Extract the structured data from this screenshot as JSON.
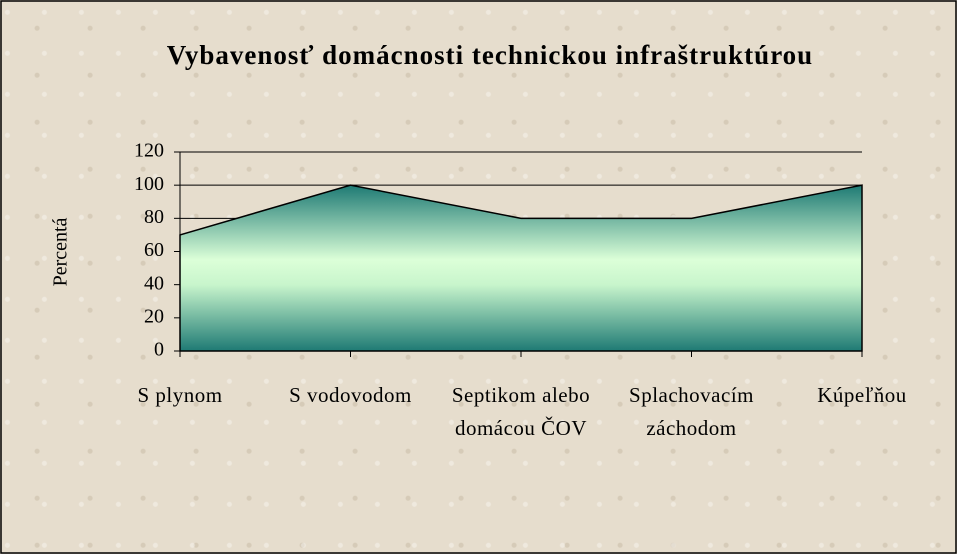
{
  "chart_data": {
    "type": "area",
    "title": "Vybavenosť domácnosti technickou infraštruktúrou",
    "ylabel": "Percentá",
    "categories": [
      "S plynom",
      "S vodovodom",
      "Septikom alebo domácou ČOV",
      "Splachovacím záchodom",
      "Kúpeľňou"
    ],
    "values": [
      70,
      100,
      80,
      80,
      100
    ],
    "color": "#1e7a74",
    "ylim": [
      0,
      120
    ],
    "yticks": [
      0,
      20,
      40,
      60,
      80,
      100,
      120
    ],
    "grid": true
  }
}
